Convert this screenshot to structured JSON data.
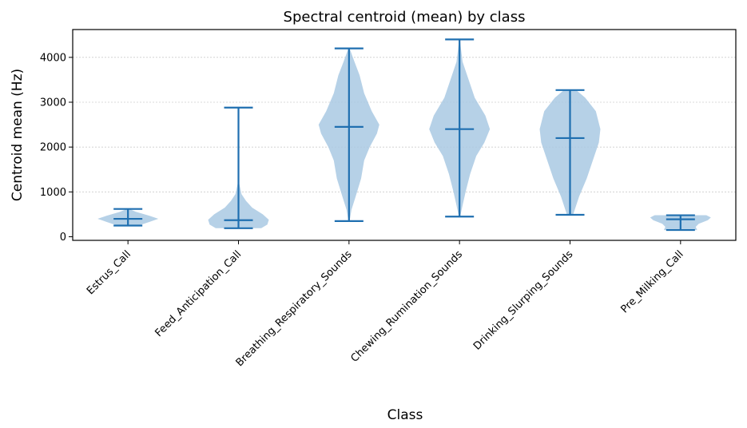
{
  "chart_data": {
    "type": "violin",
    "title": "Spectral centroid (mean) by class",
    "xlabel": "Class",
    "ylabel": "Centroid mean (Hz)",
    "ylim": [
      -80,
      4620
    ],
    "yticks": [
      0,
      1000,
      2000,
      3000,
      4000
    ],
    "grid": "y-dotted",
    "colors": {
      "body": "#a9c9e3",
      "line": "#1f6fb0"
    },
    "categories": [
      "Estrus_Call",
      "Feed_Anticipation_Call",
      "Breathing_Respiratory_Sounds",
      "Chewing_Rumination_Sounds",
      "Drinking_Slurping_Sounds",
      "Pre_Milking_Call"
    ],
    "series": [
      {
        "category": "Estrus_Call",
        "min": 250,
        "max": 620,
        "mean": 400,
        "density": [
          [
            250,
            0.35
          ],
          [
            330,
            0.7
          ],
          [
            400,
            1.0
          ],
          [
            470,
            0.7
          ],
          [
            560,
            0.25
          ],
          [
            620,
            0.05
          ]
        ]
      },
      {
        "category": "Feed_Anticipation_Call",
        "min": 190,
        "max": 2880,
        "mean": 370,
        "density": [
          [
            190,
            0.75
          ],
          [
            270,
            0.95
          ],
          [
            380,
            1.0
          ],
          [
            500,
            0.8
          ],
          [
            650,
            0.45
          ],
          [
            800,
            0.25
          ],
          [
            950,
            0.1
          ],
          [
            1200,
            0.02
          ],
          [
            2880,
            0.01
          ]
        ]
      },
      {
        "category": "Breathing_Respiratory_Sounds",
        "min": 350,
        "max": 4200,
        "mean": 2450,
        "density": [
          [
            350,
            0.02
          ],
          [
            600,
            0.08
          ],
          [
            900,
            0.22
          ],
          [
            1300,
            0.4
          ],
          [
            1700,
            0.5
          ],
          [
            2000,
            0.68
          ],
          [
            2300,
            0.92
          ],
          [
            2500,
            1.0
          ],
          [
            2800,
            0.75
          ],
          [
            3200,
            0.5
          ],
          [
            3600,
            0.35
          ],
          [
            3900,
            0.18
          ],
          [
            4200,
            0.02
          ]
        ]
      },
      {
        "category": "Chewing_Rumination_Sounds",
        "min": 450,
        "max": 4400,
        "mean": 2400,
        "density": [
          [
            450,
            0.02
          ],
          [
            700,
            0.1
          ],
          [
            1000,
            0.2
          ],
          [
            1400,
            0.35
          ],
          [
            1800,
            0.55
          ],
          [
            2100,
            0.82
          ],
          [
            2400,
            1.0
          ],
          [
            2700,
            0.85
          ],
          [
            3100,
            0.5
          ],
          [
            3500,
            0.3
          ],
          [
            3900,
            0.1
          ],
          [
            4400,
            0.01
          ]
        ]
      },
      {
        "category": "Drinking_Slurping_Sounds",
        "min": 490,
        "max": 3270,
        "mean": 2200,
        "density": [
          [
            490,
            0.1
          ],
          [
            900,
            0.3
          ],
          [
            1300,
            0.55
          ],
          [
            1700,
            0.75
          ],
          [
            2100,
            0.95
          ],
          [
            2400,
            1.0
          ],
          [
            2800,
            0.85
          ],
          [
            3100,
            0.5
          ],
          [
            3270,
            0.2
          ]
        ]
      },
      {
        "category": "Pre_Milking_Call",
        "min": 150,
        "max": 480,
        "mean": 390,
        "density": [
          [
            150,
            0.55
          ],
          [
            220,
            0.5
          ],
          [
            290,
            0.6
          ],
          [
            370,
            0.9
          ],
          [
            430,
            1.0
          ],
          [
            480,
            0.85
          ]
        ]
      }
    ]
  }
}
